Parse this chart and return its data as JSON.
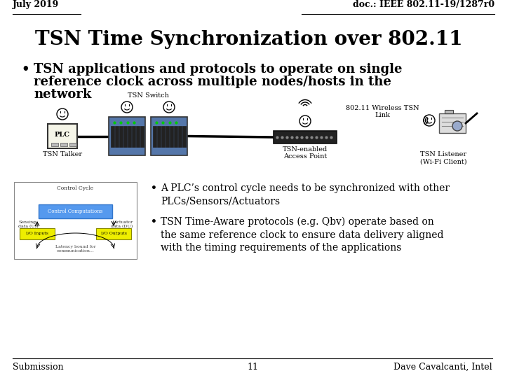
{
  "header_left": "July 2019",
  "header_right": "doc.: IEEE 802.11-19/1287r0",
  "title": "TSN Time Synchronization over 802.11",
  "bullet1_line1": "TSN applications and protocols to operate on single",
  "bullet1_line2": "reference clock across multiple nodes/hosts in the",
  "bullet1_line3": "network",
  "diagram_labels": {
    "tsn_switch": "TSN Switch",
    "wireless_link": "802.11 Wireless TSN\nLink",
    "tsn_talker": "TSN Talker",
    "tsn_ap": "TSN-enabled\nAccess Point",
    "tsn_listener": "TSN Listener\n(Wi-Fi Client)"
  },
  "sub_bullet1": "A PLC’s control cycle needs to be synchronized with other\nPLCs/Sensors/Actuators",
  "sub_bullet2": "TSN Time-Aware protocols (e.g. Qbv) operate based on\nthe same reference clock to ensure data delivery aligned\nwith the timing requirements of the applications",
  "footer_left": "Submission",
  "footer_center": "11",
  "footer_right": "Dave Cavalcanti, Intel",
  "bg_color": "#ffffff",
  "text_color": "#000000"
}
